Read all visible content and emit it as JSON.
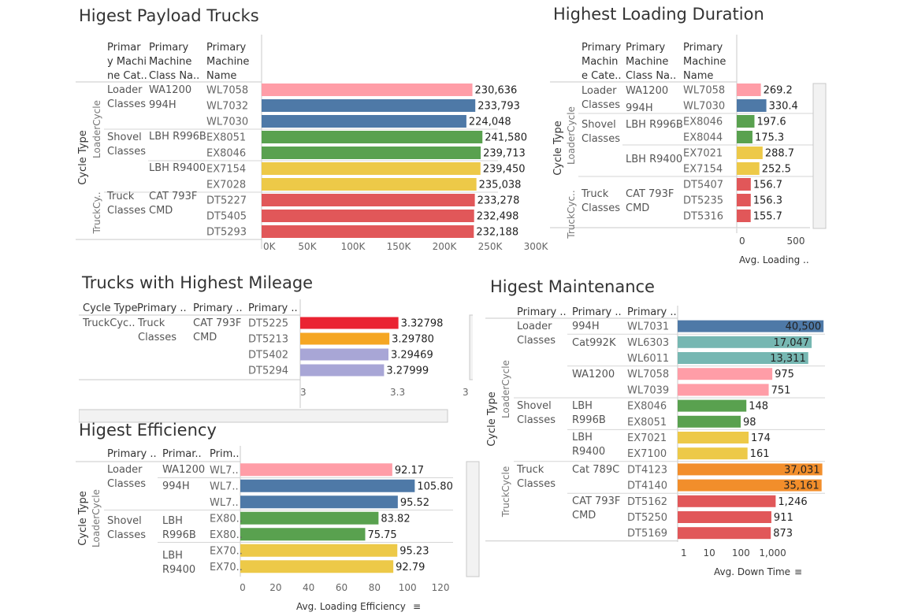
{
  "colors": {
    "pink": "#ff9da7",
    "blue": "#4e79a7",
    "green": "#59a14f",
    "yellow": "#edc948",
    "red": "#e15759",
    "teal": "#76b7b2",
    "orange": "#f28e2b",
    "brightred": "#ea2332",
    "mileorange": "#f5a623",
    "lavender": "#a8a6d6"
  },
  "chart_data": [
    {
      "id": "payload",
      "type": "bar",
      "title": "Higest Payload Trucks",
      "headers": [
        "Primar\ny Machi\nne Cat..",
        "Primary\nMachine\nClass Na..",
        "Primary\nMachine\nName"
      ],
      "cycle_axis_label": "Cycle Type",
      "cycles": [
        "LoaderCycle",
        "TruckCy.."
      ],
      "categories": [
        "Loader\nClasses",
        "Shovel\nClasses",
        "Truck\nClasses"
      ],
      "classes": [
        "WA1200",
        "994H",
        "LBH R996B",
        "LBH R9400",
        "CAT 793F\nCMD"
      ],
      "rows": [
        {
          "name": "WL7058",
          "value": 230636,
          "label": "230,636",
          "color": "pink"
        },
        {
          "name": "WL7032",
          "value": 233793,
          "label": "233,793",
          "color": "blue"
        },
        {
          "name": "WL7030",
          "value": 224048,
          "label": "224,048",
          "color": "blue"
        },
        {
          "name": "EX8051",
          "value": 241580,
          "label": "241,580",
          "color": "green"
        },
        {
          "name": "EX8046",
          "value": 239713,
          "label": "239,713",
          "color": "green"
        },
        {
          "name": "EX7154",
          "value": 239450,
          "label": "239,450",
          "color": "yellow"
        },
        {
          "name": "EX7028",
          "value": 235038,
          "label": "235,038",
          "color": "yellow"
        },
        {
          "name": "DT5227",
          "value": 233278,
          "label": "233,278",
          "color": "red"
        },
        {
          "name": "DT5405",
          "value": 232498,
          "label": "232,498",
          "color": "red"
        },
        {
          "name": "DT5293",
          "value": 232188,
          "label": "232,188",
          "color": "red"
        }
      ],
      "xlim": [
        0,
        300000
      ],
      "ticks": [
        0,
        50000,
        100000,
        150000,
        200000,
        250000,
        300000
      ],
      "tick_labels": [
        "0K",
        "50K",
        "100K",
        "150K",
        "200K",
        "250K",
        "300K"
      ],
      "xlabel": ""
    },
    {
      "id": "loading",
      "type": "bar",
      "title": "Highest Loading Duration",
      "headers": [
        "Primary\nMachin\ne Cate..",
        "Primary\nMachine\nClass Na..",
        "Primary\nMachine\nName"
      ],
      "cycle_axis_label": "Cycle Type",
      "cycles": [
        "LoaderCycle",
        "TruckCyc.."
      ],
      "categories": [
        "Loader\nClasses",
        "Shovel\nClasses",
        "Truck\nClasses"
      ],
      "classes": [
        "WA1200",
        "994H",
        "LBH R996B",
        "LBH R9400",
        "CAT 793F\nCMD"
      ],
      "rows": [
        {
          "name": "WL7058",
          "value": 269.2,
          "label": "269.2",
          "color": "pink"
        },
        {
          "name": "WL7030",
          "value": 330.4,
          "label": "330.4",
          "color": "blue"
        },
        {
          "name": "EX8046",
          "value": 197.6,
          "label": "197.6",
          "color": "green"
        },
        {
          "name": "EX8044",
          "value": 175.3,
          "label": "175.3",
          "color": "green"
        },
        {
          "name": "EX7021",
          "value": 288.7,
          "label": "288.7",
          "color": "yellow"
        },
        {
          "name": "EX7154",
          "value": 252.5,
          "label": "252.5",
          "color": "yellow"
        },
        {
          "name": "DT5407",
          "value": 156.7,
          "label": "156.7",
          "color": "red"
        },
        {
          "name": "DT5235",
          "value": 156.3,
          "label": "156.3",
          "color": "red"
        },
        {
          "name": "DT5316",
          "value": 155.7,
          "label": "155.7",
          "color": "red"
        }
      ],
      "xlim": [
        0,
        800
      ],
      "ticks": [
        0,
        500
      ],
      "tick_labels": [
        "0",
        "500"
      ],
      "xlabel": "Avg. Loading .."
    },
    {
      "id": "mileage",
      "type": "bar",
      "title": "Trucks with Highest Mileage",
      "headers": [
        "Cycle Type",
        "Primary ..",
        "Primary ..",
        "Primary .."
      ],
      "cycles": [
        "TruckCyc.."
      ],
      "categories": [
        "Truck\nClasses"
      ],
      "classes": [
        "CAT 793F\nCMD"
      ],
      "rows": [
        {
          "name": "DT5225",
          "value": 3.32798,
          "label": "3.32798",
          "color": "brightred"
        },
        {
          "name": "DT5213",
          "value": 3.2978,
          "label": "3.29780",
          "color": "mileorange"
        },
        {
          "name": "DT5402",
          "value": 3.29469,
          "label": "3.29469",
          "color": "lavender"
        },
        {
          "name": "DT5294",
          "value": 3.27999,
          "label": "3.27999",
          "color": "lavender"
        }
      ],
      "xlim": [
        3,
        3.55
      ],
      "ticks": [
        3,
        3.3
      ],
      "tick_labels": [
        "3",
        "3.3"
      ],
      "extra_tick_label": "3",
      "xlabel": ""
    },
    {
      "id": "efficiency",
      "type": "bar",
      "title": "Higest Efficiency",
      "headers": [
        "Primary ..",
        "Primar..",
        "Prim.."
      ],
      "cycle_axis_label": "Cycle Type",
      "cycles": [
        "LoaderCycle"
      ],
      "categories": [
        "Loader\nClasses",
        "Shovel\nClasses"
      ],
      "classes": [
        "WA1200",
        "994H",
        "LBH\nR996B",
        "LBH\nR9400"
      ],
      "rows": [
        {
          "name": "WL7..",
          "value": 92.17,
          "label": "92.17",
          "color": "pink"
        },
        {
          "name": "WL7..",
          "value": 105.8,
          "label": "105.80",
          "color": "blue"
        },
        {
          "name": "WL7..",
          "value": 95.52,
          "label": "95.52",
          "color": "blue"
        },
        {
          "name": "EX80..",
          "value": 83.82,
          "label": "83.82",
          "color": "green"
        },
        {
          "name": "EX80..",
          "value": 75.75,
          "label": "75.75",
          "color": "green"
        },
        {
          "name": "EX70..",
          "value": 95.23,
          "label": "95.23",
          "color": "yellow"
        },
        {
          "name": "EX70..",
          "value": 92.79,
          "label": "92.79",
          "color": "yellow"
        }
      ],
      "xlim": [
        0,
        130
      ],
      "ticks": [
        0,
        20,
        40,
        60,
        80,
        100,
        120
      ],
      "tick_labels": [
        "0",
        "20",
        "40",
        "60",
        "80",
        "100",
        "120"
      ],
      "xlabel": "Avg. Loading Efficiency"
    },
    {
      "id": "maintenance",
      "type": "bar",
      "scale": "log",
      "title": "Higest Maintenance",
      "headers": [
        "Primary ..",
        "Primary ..",
        "Primary .."
      ],
      "cycle_axis_label": "Cycle Type",
      "cycles": [
        "LoaderCycle",
        "TruckCycle"
      ],
      "categories": [
        "Loader\nClasses",
        "Shovel\nClasses",
        "Truck\nClasses"
      ],
      "classes": [
        "994H",
        "Cat992K",
        "WA1200",
        "LBH\nR996B",
        "LBH\nR9400",
        "Cat 789C",
        "CAT 793F\nCMD"
      ],
      "rows": [
        {
          "name": "WL7031",
          "value": 40500,
          "label": "40,500",
          "color": "blue"
        },
        {
          "name": "WL6303",
          "value": 17047,
          "label": "17,047",
          "color": "teal"
        },
        {
          "name": "WL6011",
          "value": 13311,
          "label": "13,311",
          "color": "teal"
        },
        {
          "name": "WL7058",
          "value": 975,
          "label": "975",
          "color": "pink"
        },
        {
          "name": "WL7039",
          "value": 751,
          "label": "751",
          "color": "pink"
        },
        {
          "name": "EX8046",
          "value": 148,
          "label": "148",
          "color": "green"
        },
        {
          "name": "EX8051",
          "value": 98,
          "label": "98",
          "color": "green"
        },
        {
          "name": "EX7021",
          "value": 174,
          "label": "174",
          "color": "yellow"
        },
        {
          "name": "EX7100",
          "value": 161,
          "label": "161",
          "color": "yellow"
        },
        {
          "name": "DT4123",
          "value": 37031,
          "label": "37,031",
          "color": "orange"
        },
        {
          "name": "DT4140",
          "value": 35161,
          "label": "35,161",
          "color": "orange"
        },
        {
          "name": "DT5162",
          "value": 1246,
          "label": "1,246",
          "color": "red"
        },
        {
          "name": "DT5250",
          "value": 911,
          "label": "911",
          "color": "red"
        },
        {
          "name": "DT5169",
          "value": 873,
          "label": "873",
          "color": "red"
        }
      ],
      "ticks": [
        1,
        10,
        100,
        1000
      ],
      "tick_labels": [
        "1",
        "10",
        "100",
        "1,000"
      ],
      "xlabel": "Avg. Down Time"
    }
  ]
}
